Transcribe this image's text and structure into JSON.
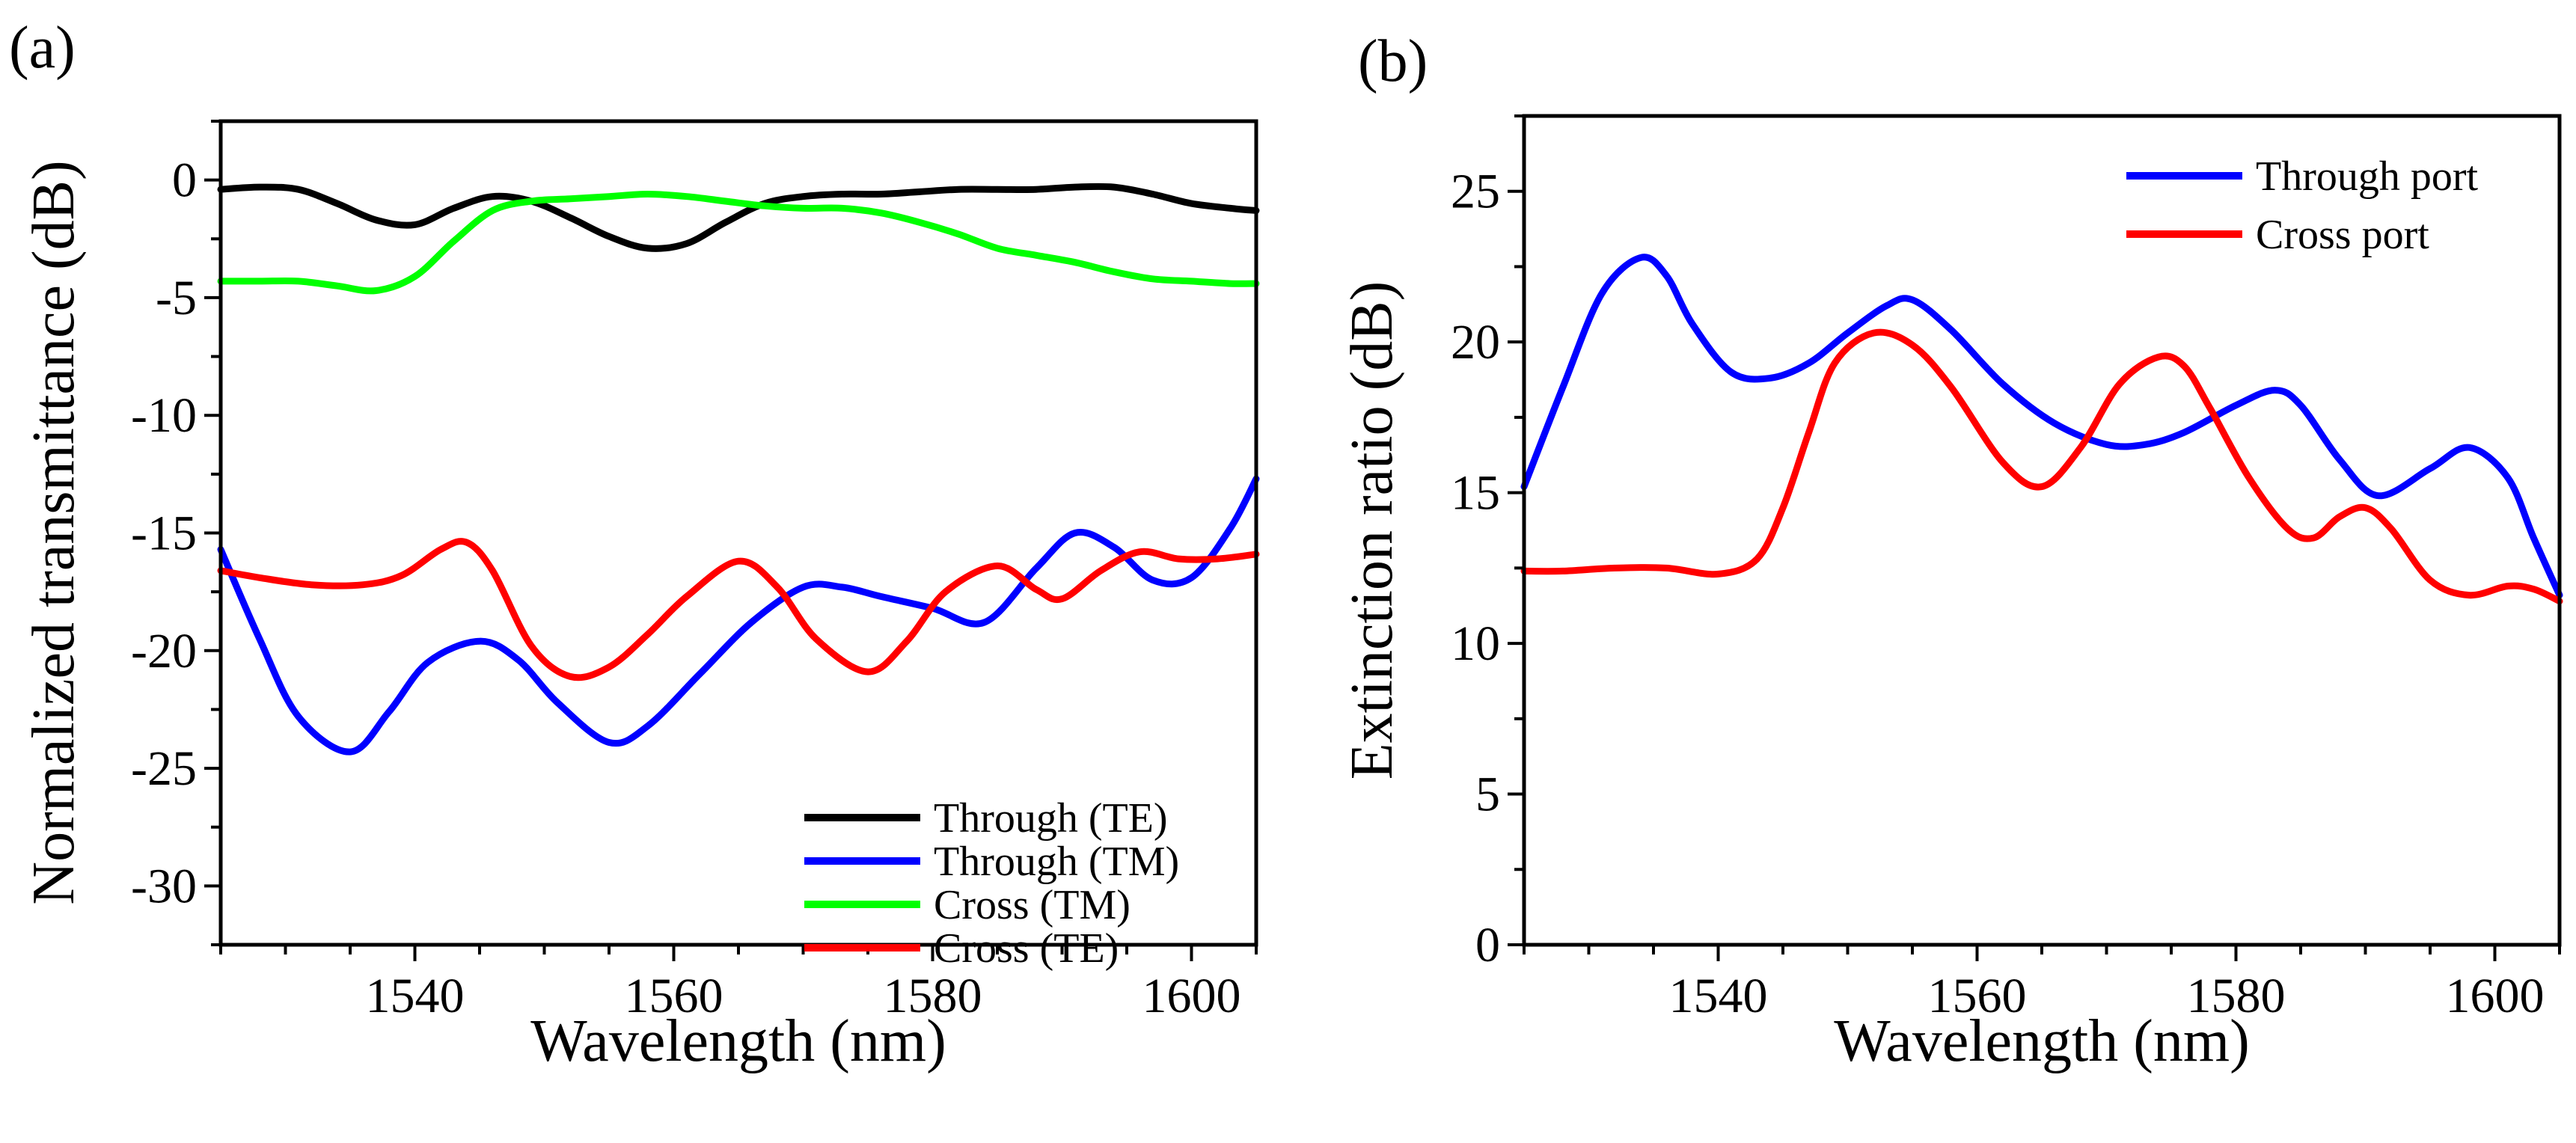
{
  "chart_data": [
    {
      "panel_label": "(a)",
      "type": "line",
      "xlabel": "Wavelength (nm)",
      "ylabel": "Normalized transmittance (dB)",
      "xlim": [
        1525,
        1605
      ],
      "ylim": [
        -32.5,
        2.5
      ],
      "xticks": [
        1540,
        1560,
        1580,
        1600
      ],
      "xtick_labels": [
        "1540",
        "1560",
        "1580",
        "1600"
      ],
      "yticks": [
        0,
        -5,
        -10,
        -15,
        -20,
        -25,
        -30
      ],
      "ytick_labels": [
        "0",
        "-5",
        "-10",
        "-15",
        "-20",
        "-25",
        "-30"
      ],
      "legend_position": "bottom-right",
      "series": [
        {
          "name": "Through (TE)",
          "color": "#000000",
          "x": [
            1525,
            1528,
            1531,
            1534,
            1537,
            1540,
            1543,
            1546,
            1549,
            1552,
            1555,
            1558,
            1561,
            1564,
            1567,
            1570,
            1573,
            1576,
            1579,
            1582,
            1585,
            1588,
            1591,
            1594,
            1597,
            1600,
            1603,
            1605
          ],
          "y": [
            -0.4,
            -0.3,
            -0.4,
            -1.0,
            -1.7,
            -1.9,
            -1.2,
            -0.7,
            -0.9,
            -1.6,
            -2.4,
            -2.9,
            -2.7,
            -1.8,
            -1.0,
            -0.7,
            -0.6,
            -0.6,
            -0.5,
            -0.4,
            -0.4,
            -0.4,
            -0.3,
            -0.3,
            -0.6,
            -1.0,
            -1.2,
            -1.3
          ]
        },
        {
          "name": "Through (TM)",
          "color": "#0000ff",
          "x": [
            1525,
            1528,
            1531,
            1535,
            1538,
            1541,
            1545,
            1548,
            1551,
            1555,
            1558,
            1562,
            1566,
            1570,
            1573,
            1576,
            1580,
            1584,
            1588,
            1591,
            1594,
            1597,
            1600,
            1603,
            1605
          ],
          "y": [
            -15.7,
            -19.5,
            -22.8,
            -24.3,
            -22.6,
            -20.5,
            -19.6,
            -20.4,
            -22.2,
            -23.9,
            -23.2,
            -21.0,
            -18.8,
            -17.3,
            -17.3,
            -17.7,
            -18.2,
            -18.8,
            -16.5,
            -15.0,
            -15.6,
            -17.0,
            -16.9,
            -14.8,
            -12.7
          ]
        },
        {
          "name": "Cross (TM)",
          "color": "#00ff00",
          "x": [
            1525,
            1528,
            1531,
            1534,
            1537,
            1540,
            1543,
            1546,
            1549,
            1552,
            1555,
            1558,
            1561,
            1564,
            1567,
            1570,
            1573,
            1576,
            1579,
            1582,
            1585,
            1588,
            1591,
            1594,
            1597,
            1600,
            1603,
            1605
          ],
          "y": [
            -4.3,
            -4.3,
            -4.3,
            -4.5,
            -4.7,
            -4.1,
            -2.6,
            -1.3,
            -0.9,
            -0.8,
            -0.7,
            -0.6,
            -0.7,
            -0.9,
            -1.1,
            -1.2,
            -1.2,
            -1.4,
            -1.8,
            -2.3,
            -2.9,
            -3.2,
            -3.5,
            -3.9,
            -4.2,
            -4.3,
            -4.4,
            -4.4
          ]
        },
        {
          "name": "Cross (TE)",
          "color": "#ff0000",
          "x": [
            1525,
            1528,
            1532,
            1536,
            1539,
            1542,
            1544,
            1546,
            1549,
            1552,
            1555,
            1558,
            1561,
            1565,
            1568,
            1571,
            1575,
            1578,
            1581,
            1585,
            1588,
            1590,
            1593,
            1596,
            1599,
            1602,
            1605
          ],
          "y": [
            -16.6,
            -16.9,
            -17.2,
            -17.2,
            -16.8,
            -15.7,
            -15.4,
            -16.6,
            -19.8,
            -21.1,
            -20.7,
            -19.3,
            -17.7,
            -16.2,
            -17.3,
            -19.5,
            -20.9,
            -19.6,
            -17.5,
            -16.4,
            -17.4,
            -17.8,
            -16.6,
            -15.8,
            -16.1,
            -16.1,
            -15.9
          ]
        }
      ]
    },
    {
      "panel_label": "(b)",
      "type": "line",
      "xlabel": "Wavelength (nm)",
      "ylabel": "Extinction ratio (dB)",
      "xlim": [
        1525,
        1605
      ],
      "ylim": [
        0,
        27.5
      ],
      "xticks": [
        1540,
        1560,
        1580,
        1600
      ],
      "xtick_labels": [
        "1540",
        "1560",
        "1580",
        "1600"
      ],
      "yticks": [
        0,
        5,
        10,
        15,
        20,
        25
      ],
      "ytick_labels": [
        "0",
        "5",
        "10",
        "15",
        "20",
        "25"
      ],
      "legend_position": "top-right",
      "series": [
        {
          "name": "Through port",
          "color": "#0000ff",
          "x": [
            1525,
            1528,
            1531,
            1534,
            1536,
            1538,
            1541,
            1544,
            1547,
            1550,
            1553,
            1555,
            1558,
            1562,
            1566,
            1570,
            1573,
            1576,
            1580,
            1583,
            1585,
            1588,
            1591,
            1595,
            1598,
            1601,
            1603,
            1605
          ],
          "y": [
            15.2,
            18.5,
            21.6,
            22.8,
            22.2,
            20.6,
            19.0,
            18.8,
            19.3,
            20.3,
            21.2,
            21.4,
            20.4,
            18.6,
            17.3,
            16.6,
            16.6,
            17.0,
            17.9,
            18.4,
            17.9,
            16.1,
            14.9,
            15.8,
            16.5,
            15.5,
            13.5,
            11.6
          ]
        },
        {
          "name": "Cross port",
          "color": "#ff0000",
          "x": [
            1525,
            1528,
            1532,
            1536,
            1540,
            1543,
            1545,
            1547,
            1549,
            1552,
            1555,
            1558,
            1562,
            1565,
            1568,
            1571,
            1574,
            1576,
            1578,
            1581,
            1584,
            1586,
            1588,
            1590,
            1592,
            1595,
            1598,
            1601,
            1603,
            1605
          ],
          "y": [
            12.4,
            12.4,
            12.5,
            12.5,
            12.3,
            12.8,
            14.5,
            17.0,
            19.3,
            20.3,
            19.9,
            18.5,
            16.0,
            15.2,
            16.5,
            18.6,
            19.5,
            19.2,
            17.8,
            15.5,
            13.8,
            13.5,
            14.2,
            14.5,
            13.8,
            12.1,
            11.6,
            11.9,
            11.8,
            11.4
          ]
        }
      ]
    }
  ]
}
